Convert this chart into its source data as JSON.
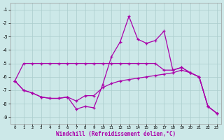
{
  "xlabel": "Windchill (Refroidissement éolien,°C)",
  "bg_color": "#cce8e8",
  "grid_color": "#aacccc",
  "line_color": "#aa00aa",
  "hours": [
    0,
    1,
    2,
    3,
    4,
    5,
    6,
    7,
    8,
    9,
    10,
    11,
    12,
    13,
    14,
    15,
    16,
    17,
    18,
    19,
    20,
    21,
    22,
    23
  ],
  "line_flat": [
    -6.3,
    -5.0,
    -5.0,
    -5.0,
    -5.0,
    -5.0,
    -5.0,
    -5.0,
    -5.0,
    -5.0,
    -5.0,
    -5.0,
    -5.0,
    -5.0,
    -5.0,
    -5.0,
    -5.0,
    -5.5,
    -5.5,
    -5.3,
    -5.7,
    -6.0,
    -8.2,
    -8.7
  ],
  "line_mid": [
    -6.3,
    -7.0,
    -7.2,
    -7.5,
    -7.6,
    -7.6,
    -7.5,
    -7.8,
    -7.4,
    -7.4,
    -6.8,
    -6.5,
    -6.3,
    -6.2,
    -6.1,
    -6.0,
    -5.9,
    -5.8,
    -5.7,
    -5.5,
    -5.7,
    -6.0,
    -8.2,
    -8.7
  ],
  "line_main": [
    -6.3,
    -7.0,
    -7.2,
    -7.5,
    -7.6,
    -7.6,
    -7.5,
    -8.4,
    -8.2,
    -8.3,
    -6.6,
    -4.5,
    -3.4,
    -1.5,
    -3.2,
    -3.5,
    -3.3,
    -2.6,
    -5.5,
    -5.3,
    -5.7,
    -6.0,
    -8.2,
    -8.7
  ],
  "ylim_min": -9.5,
  "ylim_max": -0.5,
  "yticks": [
    -1,
    -2,
    -3,
    -4,
    -5,
    -6,
    -7,
    -8,
    -9
  ]
}
